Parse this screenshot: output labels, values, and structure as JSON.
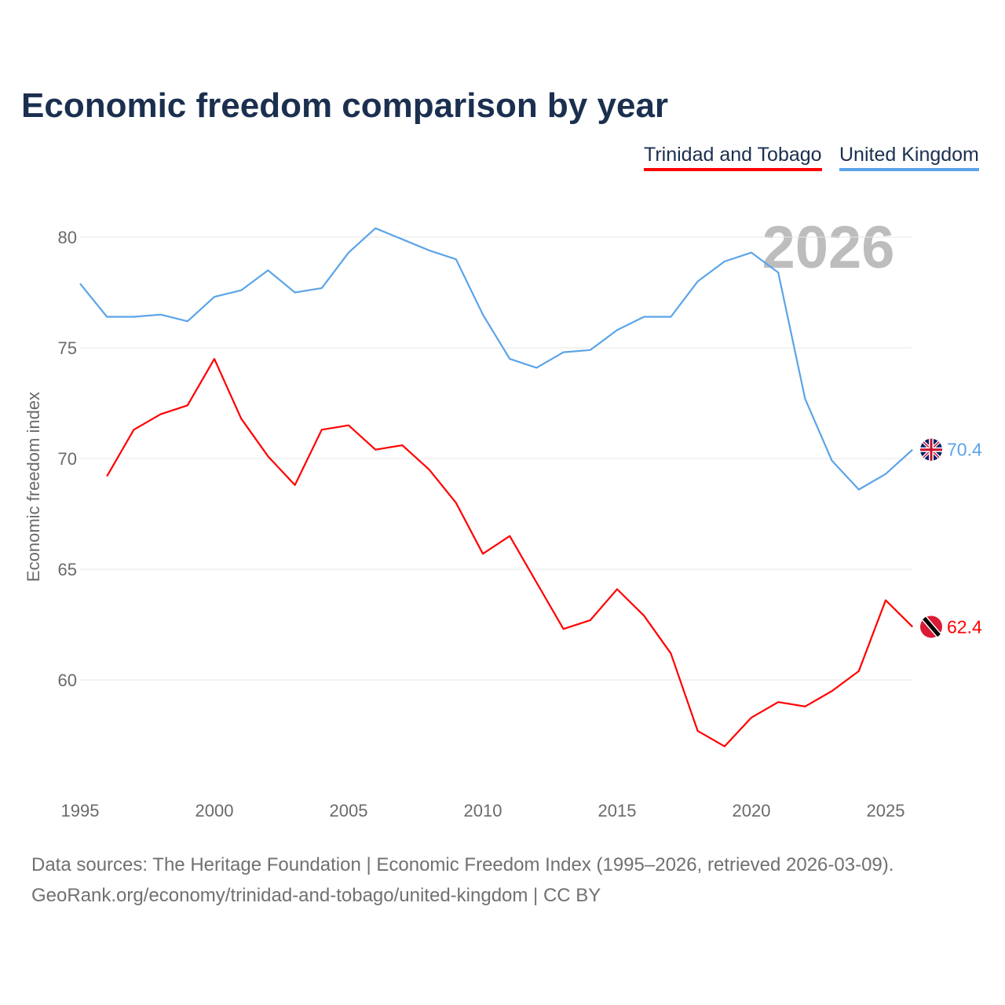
{
  "chart_data": {
    "type": "line",
    "title": "Economic freedom comparison by year",
    "ylabel": "Economic freedom index",
    "xlabel": "",
    "ylim": [
      55.3,
      81
    ],
    "xlim": [
      1995,
      2026
    ],
    "yticks": [
      60,
      65,
      70,
      75,
      80
    ],
    "xticks": [
      1995,
      2000,
      2005,
      2010,
      2015,
      2020,
      2025
    ],
    "grid": true,
    "year_watermark": "2026",
    "legend_position": "top-right",
    "series": [
      {
        "name": "Trinidad and Tobago",
        "color": "#ff0000",
        "end_label": "62.4",
        "x": [
          1996,
          1997,
          1998,
          1999,
          2000,
          2001,
          2002,
          2003,
          2004,
          2005,
          2006,
          2007,
          2008,
          2009,
          2010,
          2011,
          2012,
          2013,
          2014,
          2015,
          2016,
          2017,
          2018,
          2019,
          2020,
          2021,
          2022,
          2023,
          2024,
          2025,
          2026
        ],
        "values": [
          69.2,
          71.3,
          72.0,
          72.4,
          74.5,
          71.8,
          70.1,
          68.8,
          71.3,
          71.5,
          70.4,
          70.6,
          69.5,
          68.0,
          65.7,
          66.5,
          64.4,
          62.3,
          62.7,
          64.1,
          62.9,
          61.2,
          57.7,
          57.0,
          58.3,
          59.0,
          58.8,
          59.5,
          60.4,
          63.6,
          62.4
        ]
      },
      {
        "name": "United Kingdom",
        "color": "#5ba4e8",
        "end_label": "70.4",
        "x": [
          1995,
          1996,
          1997,
          1998,
          1999,
          2000,
          2001,
          2002,
          2003,
          2004,
          2005,
          2006,
          2007,
          2008,
          2009,
          2010,
          2011,
          2012,
          2013,
          2014,
          2015,
          2016,
          2017,
          2018,
          2019,
          2020,
          2021,
          2022,
          2023,
          2024,
          2025,
          2026
        ],
        "values": [
          77.9,
          76.4,
          76.4,
          76.5,
          76.2,
          77.3,
          77.6,
          78.5,
          77.5,
          77.7,
          79.3,
          80.4,
          79.9,
          79.4,
          79.0,
          76.5,
          74.5,
          74.1,
          74.8,
          74.9,
          75.8,
          76.4,
          76.4,
          78.0,
          78.9,
          79.3,
          78.4,
          72.7,
          69.9,
          68.6,
          69.3,
          70.4
        ]
      }
    ]
  },
  "footer": {
    "line1": "Data sources: The Heritage Foundation | Economic Freedom Index (1995–2026, retrieved 2026-03-09).",
    "line2": "GeoRank.org/economy/trinidad-and-tobago/united-kingdom | CC BY"
  }
}
